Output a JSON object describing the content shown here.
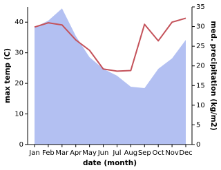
{
  "chart_data": {
    "type": "line",
    "x_label": "date (month)",
    "y_label": "max temp (C)",
    "y2_label": "med. precipitation (kg/m2)",
    "categories": [
      "Jan",
      "Feb",
      "Mar",
      "Apr",
      "May",
      "Jun",
      "Jul",
      "Aug",
      "Sep",
      "Oct",
      "Nov",
      "Dec"
    ],
    "ylim": [
      0,
      45
    ],
    "yticks": [
      0,
      10,
      20,
      30,
      40
    ],
    "y2lim": [
      0,
      35
    ],
    "y2ticks": [
      0,
      5,
      10,
      15,
      20,
      25,
      30,
      35
    ],
    "grid": false,
    "series": [
      {
        "type": "area",
        "axis": "y2",
        "color": "#b3c0f2",
        "values": [
          29.75,
          31.5,
          34.6,
          27.6,
          22.2,
          19.25,
          17.5,
          14.7,
          14.35,
          19.25,
          21.9,
          26.6
        ]
      },
      {
        "type": "line",
        "axis": "y",
        "color": "#c4525a",
        "values": [
          38.4,
          39.8,
          39.1,
          34.2,
          30.8,
          24.7,
          24.0,
          24.2,
          39.3,
          33.9,
          40.0,
          41.3
        ]
      }
    ]
  }
}
